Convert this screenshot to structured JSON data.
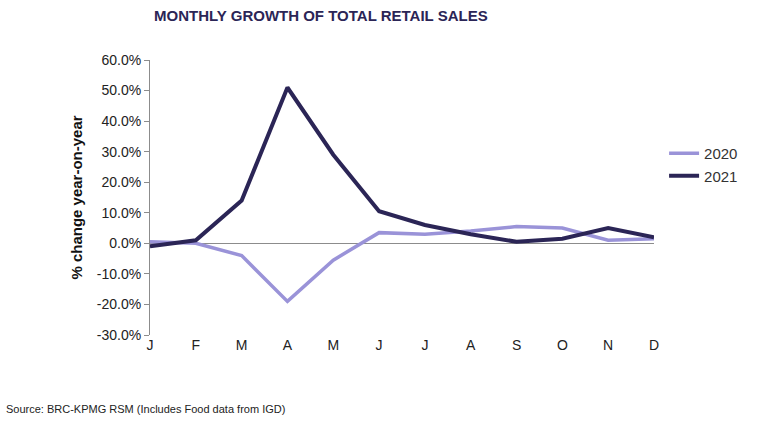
{
  "chart_data": {
    "type": "line",
    "title": "MONTHLY GROWTH OF TOTAL RETAIL SALES",
    "y_label": "% change year-on-year",
    "source": "Source: BRC-KPMG RSM (Includes Food data from IGD)",
    "categories": [
      "J",
      "F",
      "M",
      "A",
      "M",
      "J",
      "J",
      "A",
      "S",
      "O",
      "N",
      "D"
    ],
    "series": [
      {
        "name": "2020",
        "color": "#9a93d8",
        "values": [
          0.5,
          0,
          -4,
          -19,
          -5.5,
          3.5,
          3,
          4,
          5.5,
          5,
          1,
          1.5
        ]
      },
      {
        "name": "2021",
        "color": "#2b2556",
        "values": [
          -1,
          1,
          14,
          51,
          29,
          10.5,
          6,
          3,
          0.5,
          1.5,
          5,
          2
        ]
      }
    ],
    "ylim": [
      -30,
      60
    ],
    "yticks": [
      {
        "value": -30,
        "label": "-30.0%"
      },
      {
        "value": -20,
        "label": "-20.0%"
      },
      {
        "value": -10,
        "label": "-10.0%"
      },
      {
        "value": 0,
        "label": "0.0%"
      },
      {
        "value": 10,
        "label": "10.0%"
      },
      {
        "value": 20,
        "label": "20.0%"
      },
      {
        "value": 30,
        "label": "30.0%"
      },
      {
        "value": 40,
        "label": "40.0%"
      },
      {
        "value": 50,
        "label": "50.0%"
      },
      {
        "value": 60,
        "label": "60.0%"
      }
    ],
    "grid": false,
    "legend": "right"
  }
}
